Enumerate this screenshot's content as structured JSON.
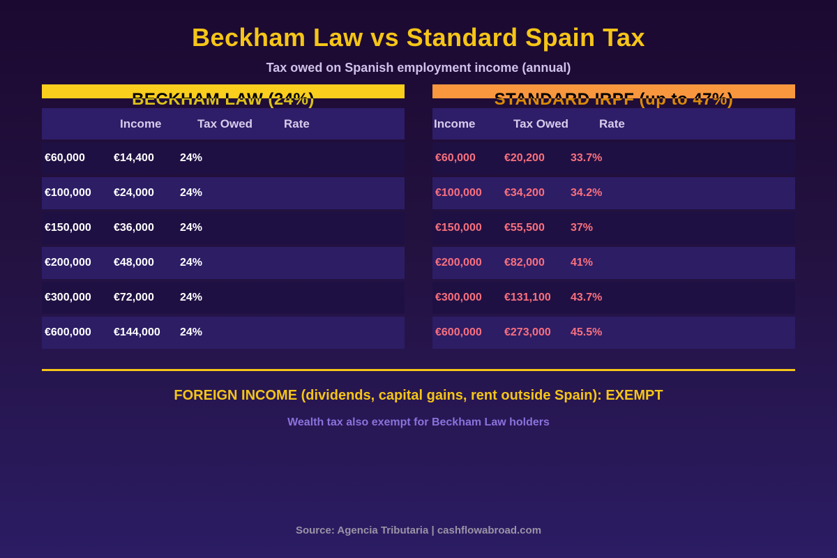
{
  "title": "Beckham Law vs Standard Spain Tax",
  "subtitle": "Tax owed on Spanish employment income (annual)",
  "colors": {
    "background_top": "#1C0931",
    "background_bottom": "#2B1C64",
    "title_yellow": "#F5C518",
    "subtitle_lavender": "#CFC2E9",
    "beckham_accent": "#F9CE1D",
    "standard_accent": "#F9973E",
    "header_row_bg": "#2E1D68",
    "row_dark": "#1F1043",
    "row_light": "#2C1D65",
    "beckham_value_text": "#FFFFFF",
    "standard_value_text": "#F9707E",
    "wealth_note_purple": "#8B72DC",
    "source_gray": "#9A94A6"
  },
  "chart_data": [
    {
      "type": "table",
      "title": "BECKHAM LAW (24%)",
      "columns": [
        "Income",
        "Tax Owed",
        "Rate"
      ],
      "rows": [
        [
          "€60,000",
          "€14,400",
          "24%"
        ],
        [
          "€100,000",
          "€24,000",
          "24%"
        ],
        [
          "€150,000",
          "€36,000",
          "24%"
        ],
        [
          "€200,000",
          "€48,000",
          "24%"
        ],
        [
          "€300,000",
          "€72,000",
          "24%"
        ],
        [
          "€600,000",
          "€144,000",
          "24%"
        ]
      ]
    },
    {
      "type": "table",
      "title": "STANDARD IRPF (up to 47%)",
      "columns": [
        "Income",
        "Tax Owed",
        "Rate"
      ],
      "rows": [
        [
          "€60,000",
          "€20,200",
          "33.7%"
        ],
        [
          "€100,000",
          "€34,200",
          "34.2%"
        ],
        [
          "€150,000",
          "€55,500",
          "37%"
        ],
        [
          "€200,000",
          "€82,000",
          "41%"
        ],
        [
          "€300,000",
          "€131,100",
          "43.7%"
        ],
        [
          "€600,000",
          "€273,000",
          "45.5%"
        ]
      ]
    }
  ],
  "notes": {
    "foreign_income": "FOREIGN INCOME (dividends, capital gains, rent outside Spain): EXEMPT",
    "wealth_tax": "Wealth tax also exempt for Beckham Law holders"
  },
  "footer": {
    "source": "Source: Agencia Tributaria | cashflowabroad.com"
  }
}
